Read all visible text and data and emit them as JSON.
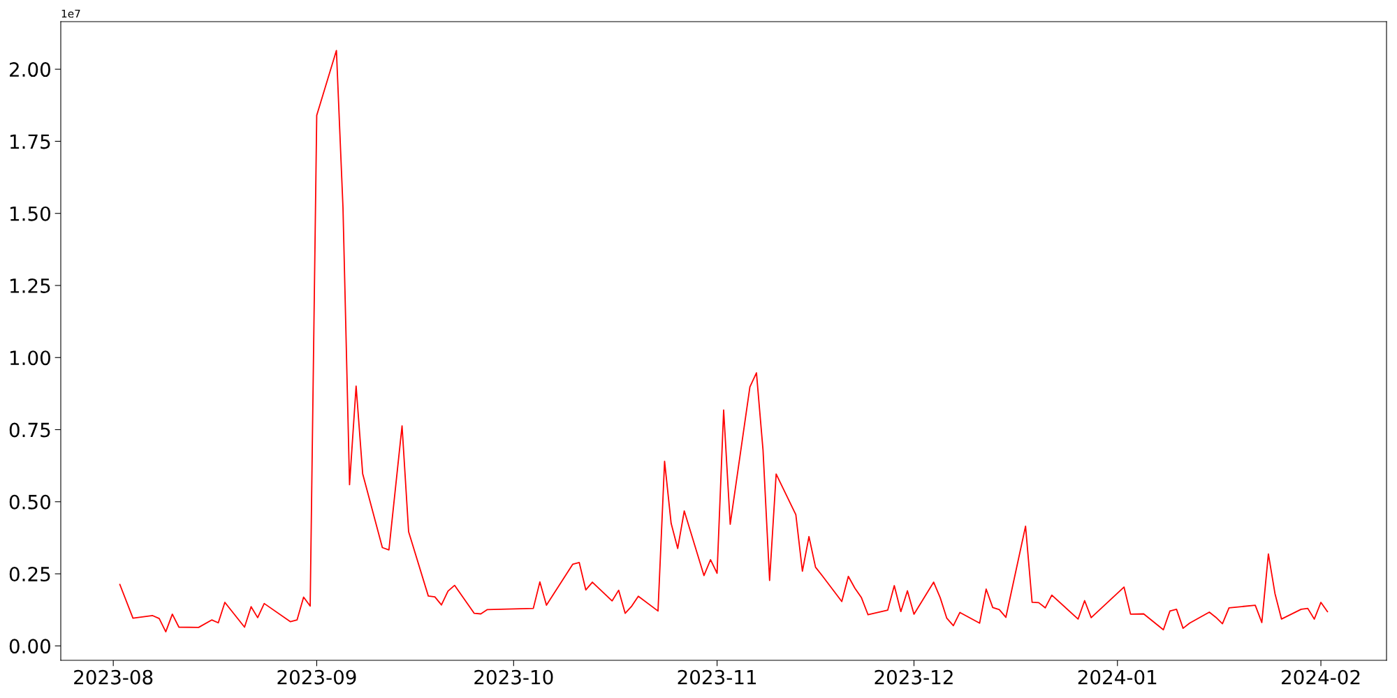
{
  "chart_data": {
    "type": "line",
    "x": [
      "2023-08-02",
      "2023-08-04",
      "2023-08-07",
      "2023-08-08",
      "2023-08-09",
      "2023-08-10",
      "2023-08-11",
      "2023-08-14",
      "2023-08-16",
      "2023-08-17",
      "2023-08-18",
      "2023-08-21",
      "2023-08-22",
      "2023-08-23",
      "2023-08-24",
      "2023-08-28",
      "2023-08-29",
      "2023-08-30",
      "2023-08-31",
      "2023-09-01",
      "2023-09-04",
      "2023-09-05",
      "2023-09-06",
      "2023-09-07",
      "2023-09-08",
      "2023-09-11",
      "2023-09-12",
      "2023-09-14",
      "2023-09-15",
      "2023-09-18",
      "2023-09-19",
      "2023-09-20",
      "2023-09-21",
      "2023-09-22",
      "2023-09-25",
      "2023-09-26",
      "2023-09-27",
      "2023-10-04",
      "2023-10-05",
      "2023-10-06",
      "2023-10-10",
      "2023-10-11",
      "2023-10-12",
      "2023-10-13",
      "2023-10-16",
      "2023-10-17",
      "2023-10-18",
      "2023-10-19",
      "2023-10-20",
      "2023-10-23",
      "2023-10-24",
      "2023-10-25",
      "2023-10-26",
      "2023-10-27",
      "2023-10-30",
      "2023-10-31",
      "2023-11-01",
      "2023-11-02",
      "2023-11-03",
      "2023-11-06",
      "2023-11-07",
      "2023-11-08",
      "2023-11-09",
      "2023-11-10",
      "2023-11-13",
      "2023-11-14",
      "2023-11-15",
      "2023-11-16",
      "2023-11-17",
      "2023-11-20",
      "2023-11-21",
      "2023-11-22",
      "2023-11-23",
      "2023-11-24",
      "2023-11-27",
      "2023-11-28",
      "2023-11-29",
      "2023-11-30",
      "2023-12-01",
      "2023-12-04",
      "2023-12-05",
      "2023-12-06",
      "2023-12-07",
      "2023-12-08",
      "2023-12-11",
      "2023-12-12",
      "2023-12-13",
      "2023-12-14",
      "2023-12-15",
      "2023-12-18",
      "2023-12-19",
      "2023-12-20",
      "2023-12-21",
      "2023-12-22",
      "2023-12-26",
      "2023-12-27",
      "2023-12-28",
      "2024-01-02",
      "2024-01-03",
      "2024-01-05",
      "2024-01-08",
      "2024-01-09",
      "2024-01-10",
      "2024-01-11",
      "2024-01-12",
      "2024-01-15",
      "2024-01-16",
      "2024-01-17",
      "2024-01-18",
      "2024-01-22",
      "2024-01-23",
      "2024-01-24",
      "2024-01-25",
      "2024-01-26",
      "2024-01-29",
      "2024-01-30",
      "2024-01-31",
      "2024-02-01",
      "2024-02-02"
    ],
    "series": [
      {
        "color": "#ff0000",
        "values": [
          0.213,
          0.096,
          0.105,
          0.095,
          0.049,
          0.11,
          0.065,
          0.064,
          0.09,
          0.08,
          0.151,
          0.065,
          0.136,
          0.098,
          0.147,
          0.084,
          0.09,
          0.169,
          0.138,
          1.84,
          2.065,
          1.52,
          0.559,
          0.901,
          0.597,
          0.341,
          0.333,
          0.763,
          0.396,
          0.173,
          0.17,
          0.142,
          0.19,
          0.21,
          0.113,
          0.111,
          0.126,
          0.13,
          0.222,
          0.141,
          0.283,
          0.289,
          0.194,
          0.221,
          0.156,
          0.193,
          0.113,
          0.138,
          0.172,
          0.121,
          0.64,
          0.425,
          0.338,
          0.468,
          0.244,
          0.299,
          0.252,
          0.818,
          0.422,
          0.898,
          0.947,
          0.679,
          0.227,
          0.596,
          0.455,
          0.259,
          0.379,
          0.273,
          0.244,
          0.154,
          0.241,
          0.2,
          0.167,
          0.108,
          0.124,
          0.209,
          0.119,
          0.191,
          0.11,
          0.221,
          0.167,
          0.096,
          0.07,
          0.116,
          0.079,
          0.197,
          0.133,
          0.126,
          0.099,
          0.415,
          0.151,
          0.15,
          0.132,
          0.176,
          0.093,
          0.157,
          0.098,
          0.204,
          0.11,
          0.111,
          0.056,
          0.121,
          0.127,
          0.061,
          0.079,
          0.117,
          0.099,
          0.077,
          0.132,
          0.141,
          0.081,
          0.319,
          0.182,
          0.093,
          0.127,
          0.13,
          0.093,
          0.151,
          0.119
        ]
      }
    ],
    "xlim": [
      "2023-07-24",
      "2024-02-11"
    ],
    "xticks": [
      {
        "value": "2023-08-01",
        "label": "2023-08"
      },
      {
        "value": "2023-09-01",
        "label": "2023-09"
      },
      {
        "value": "2023-10-01",
        "label": "2023-10"
      },
      {
        "value": "2023-11-01",
        "label": "2023-11"
      },
      {
        "value": "2023-12-01",
        "label": "2023-12"
      },
      {
        "value": "2024-01-01",
        "label": "2024-01"
      },
      {
        "value": "2024-02-01",
        "label": "2024-02"
      }
    ],
    "ylim": [
      -0.05,
      2.165
    ],
    "yticks": [
      {
        "value": 0,
        "label": "0.00"
      },
      0.25,
      {
        "value": 0.5,
        "label": "0.50"
      },
      0.75,
      {
        "value": 1,
        "label": "1.00"
      },
      1.25,
      {
        "value": 1.5,
        "label": "1.50"
      },
      1.75,
      {
        "value": 2,
        "label": "2.00"
      }
    ],
    "annotations": [
      "1e7"
    ],
    "grid": false,
    "marker": "none",
    "line_style": "solid"
  }
}
